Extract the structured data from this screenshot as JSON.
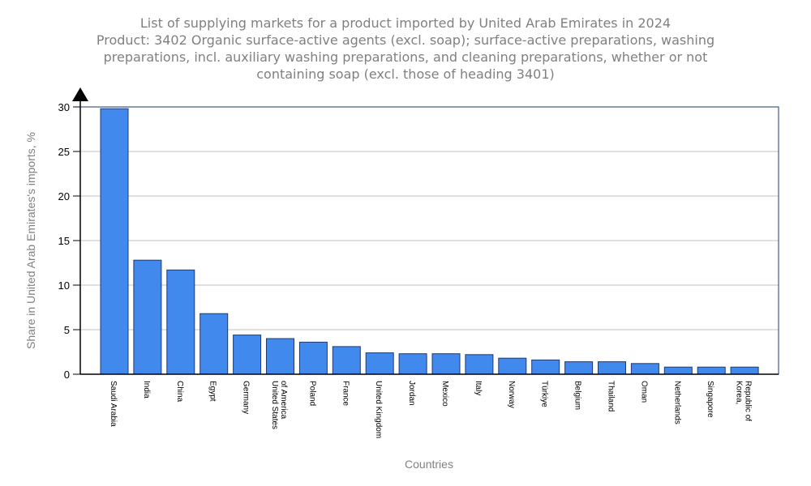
{
  "chart_data": {
    "type": "bar",
    "title": [
      "List of supplying markets for a product imported by United Arab Emirates in 2024",
      "Product: 3402 Organic surface-active agents (excl. soap); surface-active preparations, washing",
      "preparations, incl. auxiliary washing preparations, and cleaning preparations, whether or not",
      "containing soap (excl. those of heading 3401)"
    ],
    "xlabel": "Countries",
    "ylabel": "Share in United Arab Emirates's imports, %",
    "ylim": [
      0,
      30
    ],
    "yticks": [
      "0",
      "5",
      "10",
      "15",
      "20",
      "25",
      "30"
    ],
    "grid": true,
    "bar_color": "#4189ed",
    "categories": [
      [
        "Saudi Arabia"
      ],
      [
        "India"
      ],
      [
        "China"
      ],
      [
        "Egypt"
      ],
      [
        "Germany"
      ],
      [
        "United States",
        "of America"
      ],
      [
        "Poland"
      ],
      [
        "France"
      ],
      [
        "United Kingdom"
      ],
      [
        "Jordan"
      ],
      [
        "Mexico"
      ],
      [
        "Italy"
      ],
      [
        "Norway"
      ],
      [
        "Türkiye"
      ],
      [
        "Belgium"
      ],
      [
        "Thailand"
      ],
      [
        "Oman"
      ],
      [
        "Netherlands"
      ],
      [
        "Singapore"
      ],
      [
        "Korea,",
        "Republic of"
      ]
    ],
    "values": [
      29.8,
      12.8,
      11.7,
      6.8,
      4.4,
      4.0,
      3.6,
      3.1,
      2.4,
      2.3,
      2.3,
      2.2,
      1.8,
      1.6,
      1.4,
      1.4,
      1.2,
      0.8,
      0.8,
      0.8
    ]
  }
}
